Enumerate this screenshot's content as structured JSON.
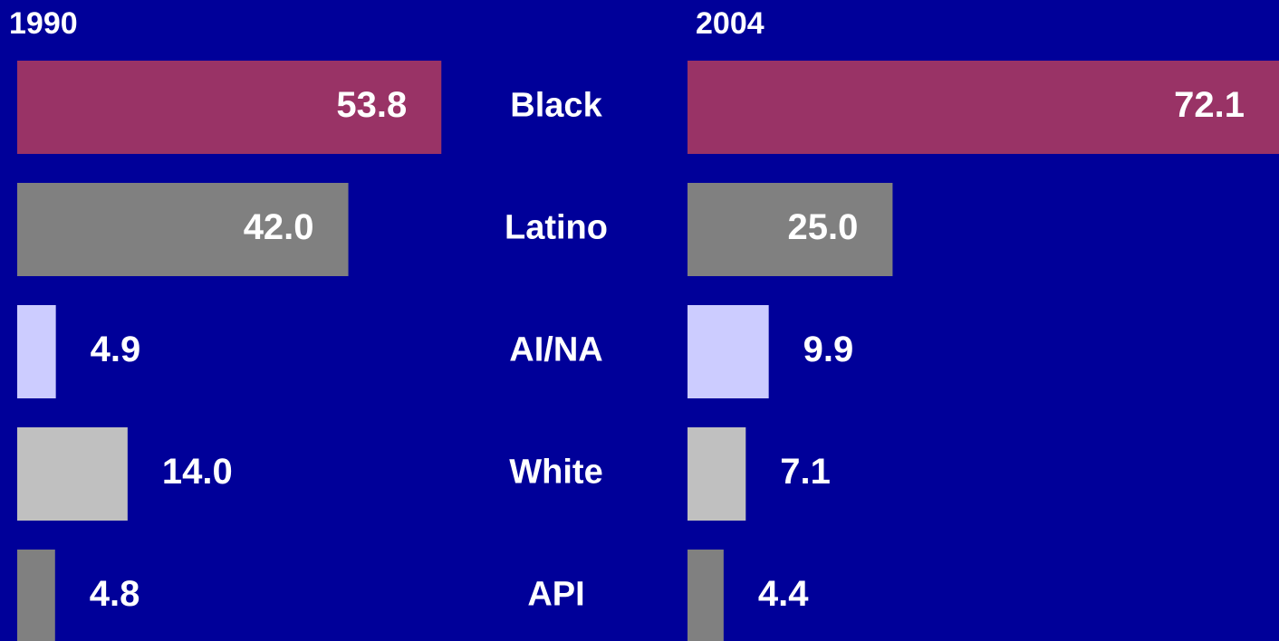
{
  "chart_data": {
    "type": "bar",
    "categories": [
      "Black",
      "Latino",
      "AI/NA",
      "White",
      "API"
    ],
    "colors": [
      "#993366",
      "#808080",
      "#ccccff",
      "#c0c0c0",
      "#808080"
    ],
    "series": [
      {
        "name": "1990",
        "values": [
          53.8,
          42,
          4.9,
          14,
          4.8
        ],
        "value_labels": [
          "53.8",
          "42.0",
          "4.9",
          "14.0",
          "4.8"
        ],
        "xlim": [
          0,
          54
        ]
      },
      {
        "name": "2004",
        "values": [
          72.1,
          25,
          9.9,
          7.1,
          4.4
        ],
        "value_labels": [
          "72.1",
          "25.0",
          "9.9",
          "7.1",
          "4.4"
        ],
        "xlim": [
          0,
          72.1
        ]
      }
    ]
  }
}
